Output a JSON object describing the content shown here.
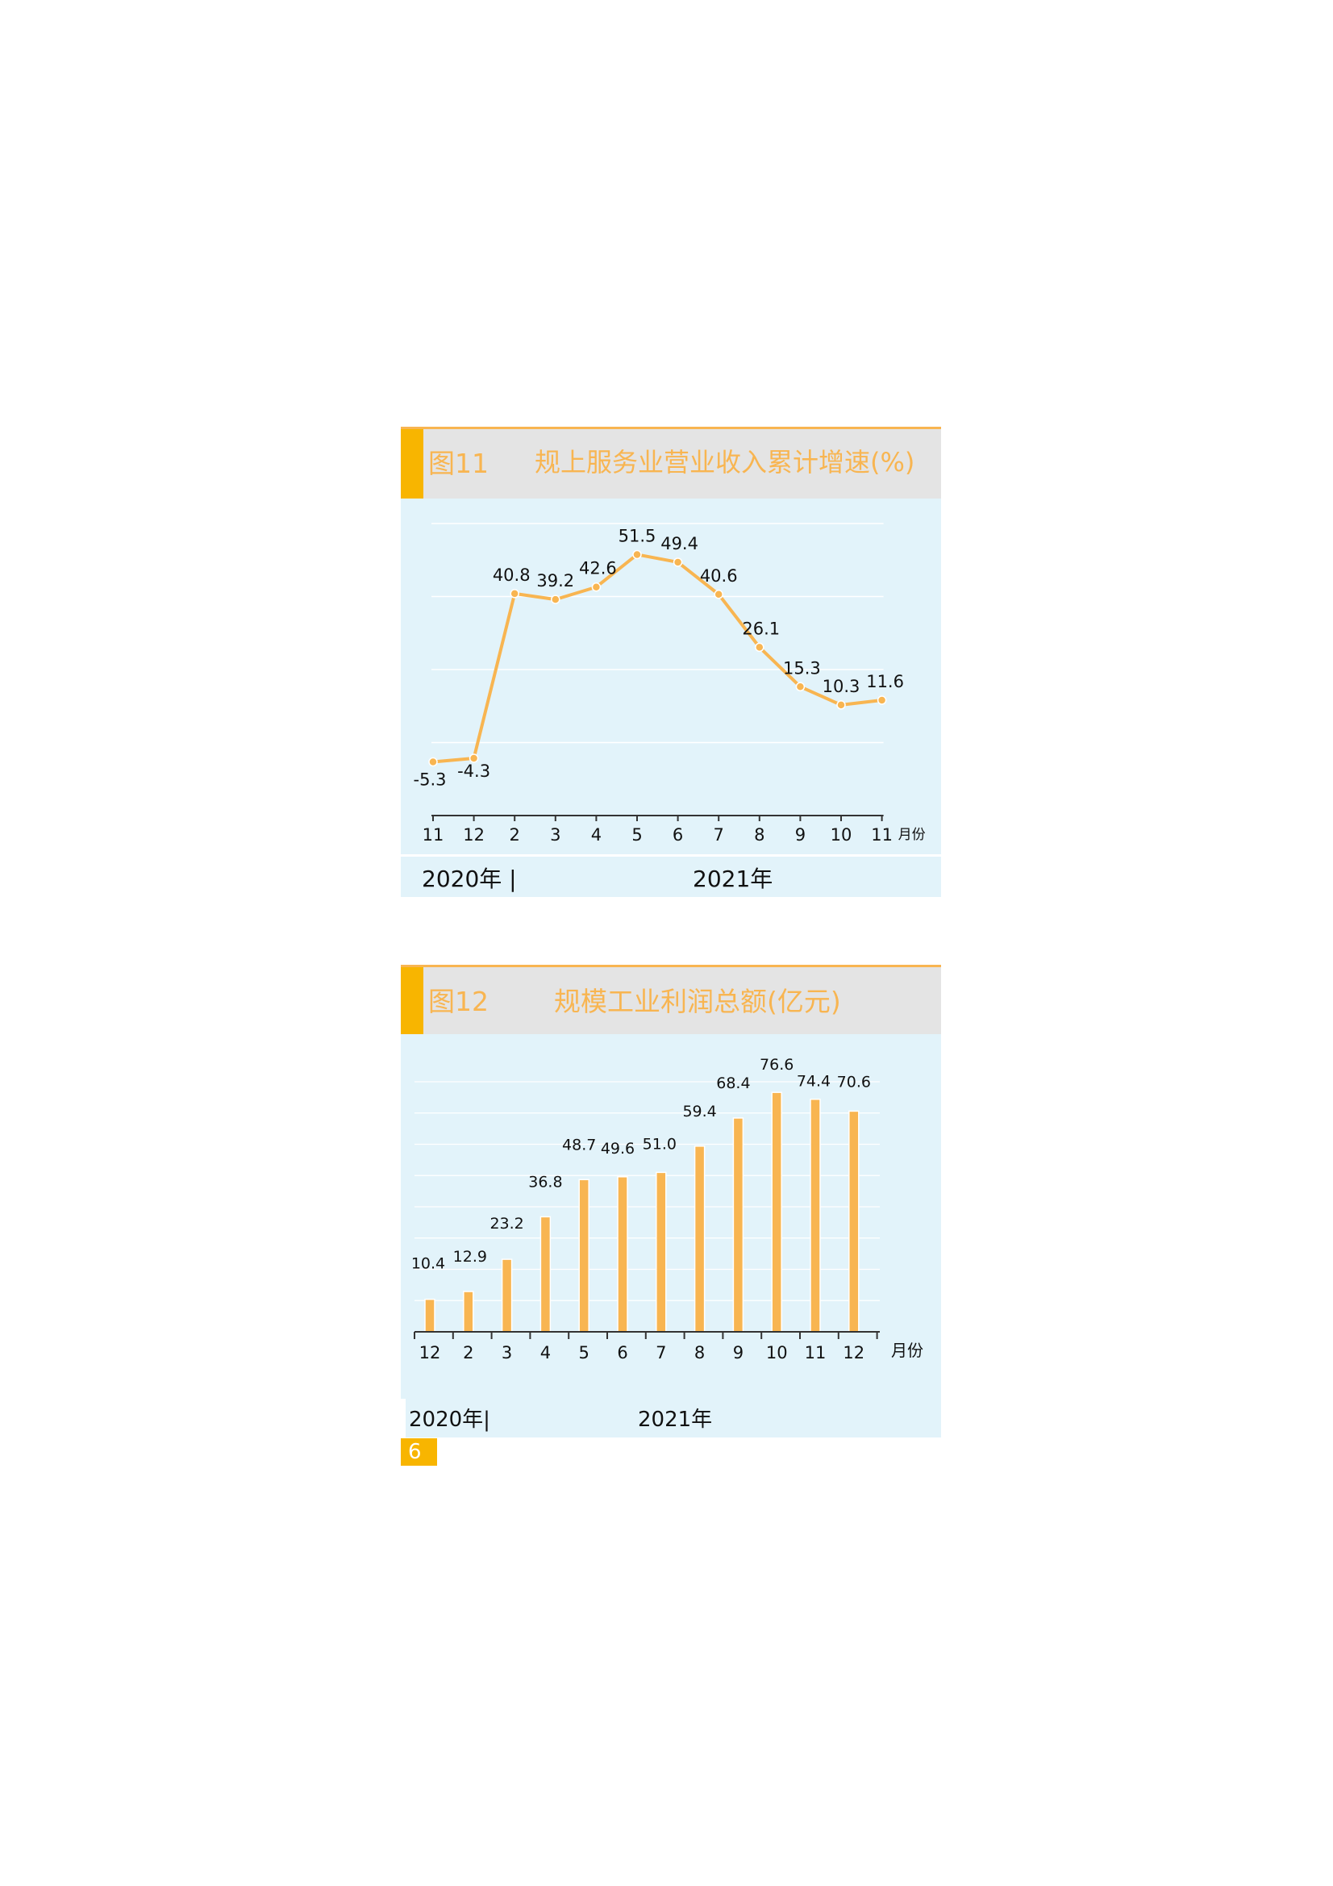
{
  "figures": [
    {
      "number": "图11",
      "title": "规上服务业营业收入累计增速(%)",
      "year_2020": "2020年 |",
      "year_2021": "2021年"
    },
    {
      "number": "图12",
      "title": "规模工业利润总额(亿元)",
      "year_2020": "2020年|",
      "year_2021": "2021年"
    }
  ],
  "page_number": "6",
  "colors": {
    "accent": "#f8b500",
    "line": "#f8b551",
    "panel_bg": "#e2f3fa",
    "header_bg": "#e4e4e4"
  },
  "chart_data": [
    {
      "type": "line",
      "title": "规上服务业营业收入累计增速(%)",
      "categories": [
        "11",
        "12",
        "2",
        "3",
        "4",
        "5",
        "6",
        "7",
        "8",
        "9",
        "10",
        "11"
      ],
      "values": [
        -5.3,
        -4.3,
        40.8,
        39.2,
        42.6,
        51.5,
        49.4,
        40.6,
        26.1,
        15.3,
        10.3,
        11.6
      ],
      "data_labels": [
        "-5.3",
        "-4.3",
        "40.8",
        "39.2",
        "42.6",
        "51.5",
        "49.4",
        "40.6",
        "26.1",
        "15.3",
        "10.3",
        "11.6"
      ],
      "x_unit": "月份",
      "ylim": [
        -20,
        60
      ],
      "grid": true
    },
    {
      "type": "bar",
      "title": "规模工业利润总额(亿元)",
      "categories": [
        "12",
        "2",
        "3",
        "4",
        "5",
        "6",
        "7",
        "8",
        "9",
        "10",
        "11",
        "12"
      ],
      "values": [
        10.4,
        12.9,
        23.2,
        36.8,
        48.7,
        49.6,
        51.0,
        59.4,
        68.4,
        76.6,
        74.4,
        70.6
      ],
      "data_labels": [
        "10.4",
        "12.9",
        "23.2",
        "36.8",
        "48.7",
        "49.6",
        "51.0",
        "59.4",
        "68.4",
        "76.6",
        "74.4",
        "70.6"
      ],
      "x_unit": "月份",
      "ylim": [
        0,
        80
      ],
      "grid": true
    }
  ]
}
